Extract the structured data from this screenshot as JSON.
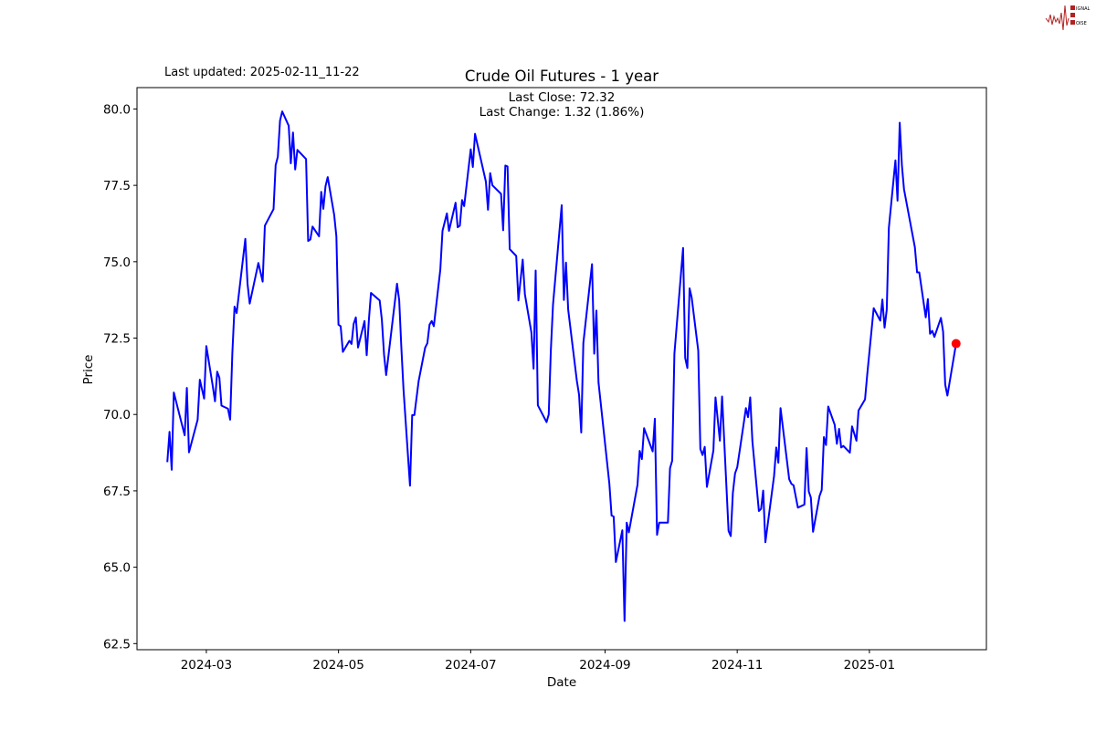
{
  "header": {
    "last_updated": "Last updated: 2025-02-11_11-22",
    "logo_text": "SIGNAL 2 NOISE"
  },
  "colors": {
    "line": "#0000ff",
    "last_marker": "#ff0000",
    "logo": "#b22222"
  },
  "chart_data": {
    "type": "line",
    "title": "Crude Oil Futures - 1 year",
    "annotations": [
      "Last Close: 72.32",
      "Last Change: 1.32 (1.86%)"
    ],
    "xlabel": "Date",
    "ylabel": "Price",
    "ylim": [
      62.3,
      80.7
    ],
    "xlim": [
      "2024-01-29",
      "2025-02-24"
    ],
    "yticks": [
      "62.5",
      "65.0",
      "67.5",
      "70.0",
      "72.5",
      "75.0",
      "77.5",
      "80.0"
    ],
    "yticks_values": [
      62.5,
      65.0,
      67.5,
      70.0,
      72.5,
      75.0,
      77.5,
      80.0
    ],
    "xticks": [
      "2024-03",
      "2024-05",
      "2024-07",
      "2024-09",
      "2024-11",
      "2025-01"
    ],
    "xticks_dates": [
      "2024-03-01",
      "2024-05-01",
      "2024-07-01",
      "2024-09-01",
      "2024-11-01",
      "2025-01-01"
    ],
    "grid": false,
    "last_point_marker": true,
    "series": [
      {
        "points": [
          [
            "2024-02-12",
            68.44
          ],
          [
            "2024-02-13",
            69.43
          ],
          [
            "2024-02-14",
            68.19
          ],
          [
            "2024-02-15",
            70.72
          ],
          [
            "2024-02-20",
            69.32
          ],
          [
            "2024-02-21",
            70.87
          ],
          [
            "2024-02-22",
            68.76
          ],
          [
            "2024-02-26",
            69.83
          ],
          [
            "2024-02-27",
            71.14
          ],
          [
            "2024-02-29",
            70.52
          ],
          [
            "2024-03-01",
            72.24
          ],
          [
            "2024-03-04",
            70.92
          ],
          [
            "2024-03-05",
            70.43
          ],
          [
            "2024-03-06",
            71.4
          ],
          [
            "2024-03-07",
            71.2
          ],
          [
            "2024-03-08",
            70.29
          ],
          [
            "2024-03-11",
            70.19
          ],
          [
            "2024-03-12",
            69.83
          ],
          [
            "2024-03-13",
            72.01
          ],
          [
            "2024-03-14",
            73.53
          ],
          [
            "2024-03-15",
            73.32
          ],
          [
            "2024-03-19",
            75.75
          ],
          [
            "2024-03-20",
            74.28
          ],
          [
            "2024-03-21",
            73.63
          ],
          [
            "2024-03-25",
            74.96
          ],
          [
            "2024-03-27",
            74.35
          ],
          [
            "2024-03-28",
            76.18
          ],
          [
            "2024-04-01",
            76.72
          ],
          [
            "2024-04-02",
            78.16
          ],
          [
            "2024-04-03",
            78.44
          ],
          [
            "2024-04-04",
            79.62
          ],
          [
            "2024-04-05",
            79.92
          ],
          [
            "2024-04-08",
            79.45
          ],
          [
            "2024-04-09",
            78.22
          ],
          [
            "2024-04-10",
            79.23
          ],
          [
            "2024-04-11",
            78.02
          ],
          [
            "2024-04-12",
            78.66
          ],
          [
            "2024-04-16",
            78.36
          ],
          [
            "2024-04-17",
            75.68
          ],
          [
            "2024-04-18",
            75.73
          ],
          [
            "2024-04-19",
            76.15
          ],
          [
            "2024-04-22",
            75.83
          ],
          [
            "2024-04-23",
            77.29
          ],
          [
            "2024-04-24",
            76.73
          ],
          [
            "2024-04-25",
            77.47
          ],
          [
            "2024-04-26",
            77.77
          ],
          [
            "2024-04-29",
            76.53
          ],
          [
            "2024-04-30",
            75.83
          ],
          [
            "2024-05-01",
            72.94
          ],
          [
            "2024-05-02",
            72.89
          ],
          [
            "2024-05-03",
            72.05
          ],
          [
            "2024-05-06",
            72.41
          ],
          [
            "2024-05-07",
            72.31
          ],
          [
            "2024-05-08",
            72.96
          ],
          [
            "2024-05-09",
            73.18
          ],
          [
            "2024-05-10",
            72.19
          ],
          [
            "2024-05-13",
            73.06
          ],
          [
            "2024-05-14",
            71.94
          ],
          [
            "2024-05-15",
            73.1
          ],
          [
            "2024-05-16",
            73.98
          ],
          [
            "2024-05-20",
            73.73
          ],
          [
            "2024-05-21",
            73.1
          ],
          [
            "2024-05-22",
            71.96
          ],
          [
            "2024-05-23",
            71.29
          ],
          [
            "2024-05-28",
            74.28
          ],
          [
            "2024-05-29",
            73.73
          ],
          [
            "2024-05-30",
            72.21
          ],
          [
            "2024-05-31",
            70.82
          ],
          [
            "2024-06-03",
            67.67
          ],
          [
            "2024-06-04",
            69.98
          ],
          [
            "2024-06-05",
            69.98
          ],
          [
            "2024-06-07",
            71.1
          ],
          [
            "2024-06-10",
            72.19
          ],
          [
            "2024-06-11",
            72.33
          ],
          [
            "2024-06-12",
            72.94
          ],
          [
            "2024-06-13",
            73.06
          ],
          [
            "2024-06-14",
            72.89
          ],
          [
            "2024-06-17",
            74.74
          ],
          [
            "2024-06-18",
            76.01
          ],
          [
            "2024-06-20",
            76.58
          ],
          [
            "2024-06-21",
            76.01
          ],
          [
            "2024-06-24",
            76.93
          ],
          [
            "2024-06-25",
            76.13
          ],
          [
            "2024-06-26",
            76.18
          ],
          [
            "2024-06-27",
            77.02
          ],
          [
            "2024-06-28",
            76.82
          ],
          [
            "2024-07-01",
            78.68
          ],
          [
            "2024-07-02",
            78.1
          ],
          [
            "2024-07-03",
            79.19
          ],
          [
            "2024-07-08",
            77.62
          ],
          [
            "2024-07-09",
            76.7
          ],
          [
            "2024-07-10",
            77.9
          ],
          [
            "2024-07-11",
            77.5
          ],
          [
            "2024-07-15",
            77.22
          ],
          [
            "2024-07-16",
            76.03
          ],
          [
            "2024-07-17",
            78.15
          ],
          [
            "2024-07-18",
            78.12
          ],
          [
            "2024-07-19",
            75.41
          ],
          [
            "2024-07-22",
            75.19
          ],
          [
            "2024-07-23",
            73.73
          ],
          [
            "2024-07-25",
            75.07
          ],
          [
            "2024-07-26",
            73.93
          ],
          [
            "2024-07-29",
            72.69
          ],
          [
            "2024-07-30",
            71.5
          ],
          [
            "2024-07-31",
            74.71
          ],
          [
            "2024-08-01",
            70.3
          ],
          [
            "2024-08-05",
            69.75
          ],
          [
            "2024-08-06",
            70.0
          ],
          [
            "2024-08-07",
            72.09
          ],
          [
            "2024-08-08",
            73.6
          ],
          [
            "2024-08-12",
            76.85
          ],
          [
            "2024-08-13",
            73.75
          ],
          [
            "2024-08-14",
            74.97
          ],
          [
            "2024-08-15",
            73.43
          ],
          [
            "2024-08-19",
            71.1
          ],
          [
            "2024-08-20",
            70.65
          ],
          [
            "2024-08-21",
            69.41
          ],
          [
            "2024-08-22",
            72.34
          ],
          [
            "2024-08-26",
            74.92
          ],
          [
            "2024-08-27",
            71.99
          ],
          [
            "2024-08-28",
            73.4
          ],
          [
            "2024-08-29",
            71.05
          ],
          [
            "2024-09-03",
            67.73
          ],
          [
            "2024-09-04",
            66.69
          ],
          [
            "2024-09-05",
            66.66
          ],
          [
            "2024-09-06",
            65.17
          ],
          [
            "2024-09-09",
            66.21
          ],
          [
            "2024-09-10",
            63.24
          ],
          [
            "2024-09-11",
            66.46
          ],
          [
            "2024-09-12",
            66.14
          ],
          [
            "2024-09-16",
            67.7
          ],
          [
            "2024-09-17",
            68.81
          ],
          [
            "2024-09-18",
            68.54
          ],
          [
            "2024-09-19",
            69.55
          ],
          [
            "2024-09-23",
            68.79
          ],
          [
            "2024-09-24",
            69.86
          ],
          [
            "2024-09-25",
            66.06
          ],
          [
            "2024-09-26",
            66.46
          ],
          [
            "2024-09-30",
            66.46
          ],
          [
            "2024-10-01",
            68.24
          ],
          [
            "2024-10-02",
            68.49
          ],
          [
            "2024-10-03",
            71.99
          ],
          [
            "2024-10-07",
            75.45
          ],
          [
            "2024-10-08",
            71.85
          ],
          [
            "2024-10-09",
            71.52
          ],
          [
            "2024-10-10",
            74.13
          ],
          [
            "2024-10-11",
            73.83
          ],
          [
            "2024-10-14",
            72.09
          ],
          [
            "2024-10-15",
            68.87
          ],
          [
            "2024-10-16",
            68.67
          ],
          [
            "2024-10-17",
            68.94
          ],
          [
            "2024-10-18",
            67.63
          ],
          [
            "2024-10-21",
            68.82
          ],
          [
            "2024-10-22",
            70.56
          ],
          [
            "2024-10-24",
            69.14
          ],
          [
            "2024-10-25",
            70.59
          ],
          [
            "2024-10-28",
            66.19
          ],
          [
            "2024-10-29",
            66.02
          ],
          [
            "2024-10-30",
            67.43
          ],
          [
            "2024-10-31",
            68.07
          ],
          [
            "2024-11-01",
            68.27
          ],
          [
            "2024-11-04",
            69.71
          ],
          [
            "2024-11-05",
            70.21
          ],
          [
            "2024-11-06",
            69.91
          ],
          [
            "2024-11-07",
            70.56
          ],
          [
            "2024-11-08",
            69.12
          ],
          [
            "2024-11-11",
            66.84
          ],
          [
            "2024-11-12",
            66.91
          ],
          [
            "2024-11-13",
            67.51
          ],
          [
            "2024-11-14",
            65.82
          ],
          [
            "2024-11-18",
            67.98
          ],
          [
            "2024-11-19",
            68.92
          ],
          [
            "2024-11-20",
            68.42
          ],
          [
            "2024-11-21",
            70.21
          ],
          [
            "2024-11-25",
            67.88
          ],
          [
            "2024-11-26",
            67.73
          ],
          [
            "2024-11-27",
            67.68
          ],
          [
            "2024-11-29",
            66.95
          ],
          [
            "2024-12-02",
            67.05
          ],
          [
            "2024-12-03",
            68.9
          ],
          [
            "2024-12-04",
            67.48
          ],
          [
            "2024-12-05",
            67.28
          ],
          [
            "2024-12-06",
            66.16
          ],
          [
            "2024-12-09",
            67.33
          ],
          [
            "2024-12-10",
            67.53
          ],
          [
            "2024-12-11",
            69.26
          ],
          [
            "2024-12-12",
            69.0
          ],
          [
            "2024-12-13",
            70.26
          ],
          [
            "2024-12-16",
            69.66
          ],
          [
            "2024-12-17",
            69.04
          ],
          [
            "2024-12-18",
            69.53
          ],
          [
            "2024-12-19",
            68.92
          ],
          [
            "2024-12-20",
            68.97
          ],
          [
            "2024-12-23",
            68.75
          ],
          [
            "2024-12-24",
            69.61
          ],
          [
            "2024-12-26",
            69.14
          ],
          [
            "2024-12-27",
            70.13
          ],
          [
            "2024-12-30",
            70.49
          ],
          [
            "2024-12-31",
            71.3
          ],
          [
            "2025-01-03",
            73.48
          ],
          [
            "2025-01-06",
            73.07
          ],
          [
            "2025-01-07",
            73.76
          ],
          [
            "2025-01-08",
            72.84
          ],
          [
            "2025-01-09",
            73.43
          ],
          [
            "2025-01-10",
            76.11
          ],
          [
            "2025-01-13",
            78.32
          ],
          [
            "2025-01-14",
            77.0
          ],
          [
            "2025-01-15",
            79.55
          ],
          [
            "2025-01-16",
            78.15
          ],
          [
            "2025-01-17",
            77.37
          ],
          [
            "2025-01-22",
            75.47
          ],
          [
            "2025-01-23",
            74.65
          ],
          [
            "2025-01-24",
            74.65
          ],
          [
            "2025-01-27",
            73.18
          ],
          [
            "2025-01-28",
            73.78
          ],
          [
            "2025-01-29",
            72.64
          ],
          [
            "2025-01-30",
            72.74
          ],
          [
            "2025-01-31",
            72.54
          ],
          [
            "2025-02-03",
            73.16
          ],
          [
            "2025-02-04",
            72.71
          ],
          [
            "2025-02-05",
            70.98
          ],
          [
            "2025-02-06",
            70.62
          ],
          [
            "2025-02-10",
            72.32
          ]
        ]
      }
    ]
  }
}
